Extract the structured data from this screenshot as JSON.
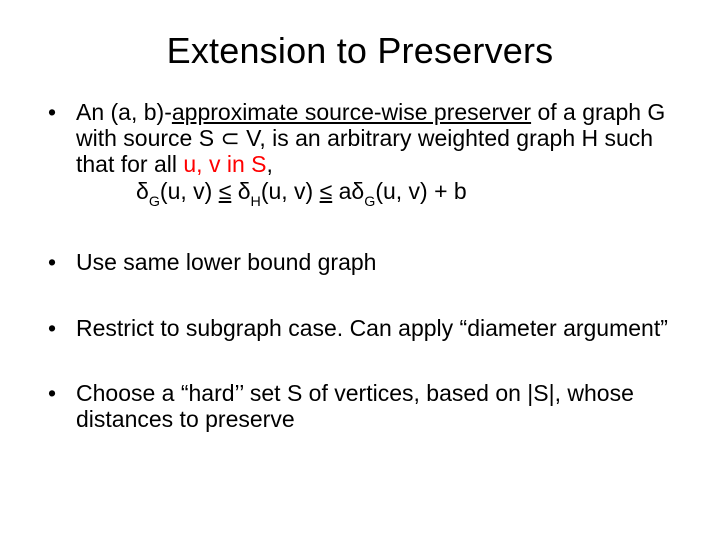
{
  "slide": {
    "title": "Extension to Preservers",
    "background_color": "#ffffff",
    "text_color": "#000000",
    "highlight_color": "#ff0000",
    "title_fontsize": 36,
    "body_fontsize": 23,
    "font_family": "Arial",
    "bullets": {
      "b1": {
        "pre1": "An (a, b)-",
        "underlined": "approximate source-wise preserver",
        "post1": " of a graph G with source S ⊂ V, is an arbitrary weighted graph H such that for all ",
        "uvS": "u, v in S",
        "comma": ",",
        "formula_lhs": "δ",
        "formula_G": "G",
        "formula_uv": "(u, v) ",
        "le": "≤",
        "sp": " ",
        "formula_H": "H",
        "formula_rhs_uv": "(u, v) ",
        "formula_a": " a",
        "formula_plus_b": "(u, v) + b"
      },
      "b2": "Use same lower bound graph",
      "b3": "Restrict to subgraph case. Can apply “diameter argument”",
      "b4": "Choose a “hard’’ set S of vertices, based on |S|, whose distances to preserve"
    }
  }
}
